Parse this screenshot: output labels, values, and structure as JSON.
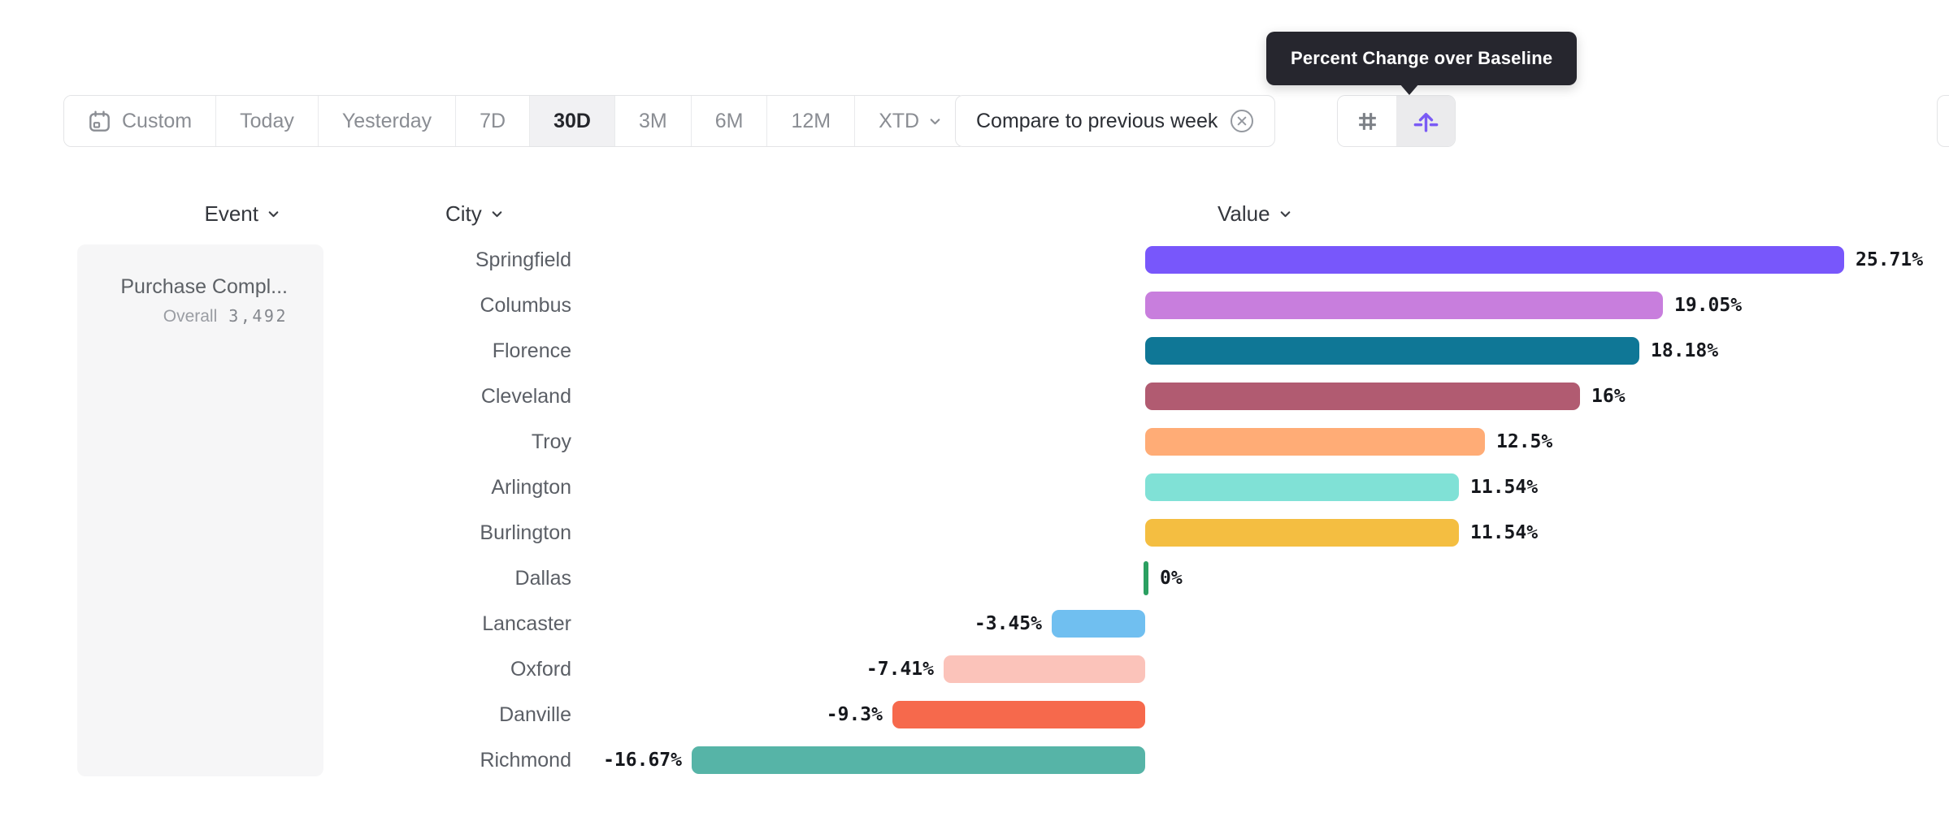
{
  "tooltip": {
    "text": "Percent Change over Baseline"
  },
  "toolbar": {
    "date_range_buttons": [
      {
        "label": "Custom",
        "icon": "calendar-icon",
        "selected": false
      },
      {
        "label": "Today",
        "selected": false
      },
      {
        "label": "Yesterday",
        "selected": false
      },
      {
        "label": "7D",
        "selected": false
      },
      {
        "label": "30D",
        "selected": true
      },
      {
        "label": "3M",
        "selected": false
      },
      {
        "label": "6M",
        "selected": false
      },
      {
        "label": "12M",
        "selected": false
      },
      {
        "label": "XTD",
        "chevron": true,
        "selected": false
      }
    ],
    "compare_chip": {
      "label": "Compare to previous week",
      "close_icon": "x-circle-icon"
    },
    "view_toggle_buttons": [
      {
        "icon": "grid-hash-icon",
        "selected": false
      },
      {
        "icon": "baseline-arrow-icon",
        "selected": true
      }
    ]
  },
  "column_headers": [
    {
      "label": "Event"
    },
    {
      "label": "City"
    },
    {
      "label": "Value"
    }
  ],
  "event_panel": {
    "event_name": "Purchase Compl...",
    "overall_label": "Overall",
    "overall_value": "3,492"
  },
  "chart_data": {
    "type": "bar",
    "orientation": "horizontal",
    "unit": "%",
    "baseline": 0,
    "xlim": [
      -16.67,
      25.71
    ],
    "categories": [
      "Springfield",
      "Columbus",
      "Florence",
      "Cleveland",
      "Troy",
      "Arlington",
      "Burlington",
      "Dallas",
      "Lancaster",
      "Oxford",
      "Danville",
      "Richmond"
    ],
    "values": [
      25.71,
      19.05,
      18.18,
      16,
      12.5,
      11.54,
      11.54,
      0,
      -3.45,
      -7.41,
      -9.3,
      -16.67
    ],
    "value_labels": [
      "25.71%",
      "19.05%",
      "18.18%",
      "16%",
      "12.5%",
      "11.54%",
      "11.54%",
      "0%",
      "-3.45%",
      "-7.41%",
      "-9.3%",
      "-16.67%"
    ],
    "bar_colors": [
      "#7857fb",
      "#c87edd",
      "#0f7796",
      "#b15b71",
      "#ffac76",
      "#80e1d6",
      "#f4be41",
      "#2ba061",
      "#70bff0",
      "#fbc3ba",
      "#f6694c",
      "#56b4a7"
    ]
  },
  "theme_colors": {
    "accent_purple": "#7a5af5",
    "selected_segment_bg": "#f1f1f3",
    "border": "#e3e4e6",
    "tooltip_bg": "#26262e",
    "baseline_tick_green": "#2ba061"
  }
}
